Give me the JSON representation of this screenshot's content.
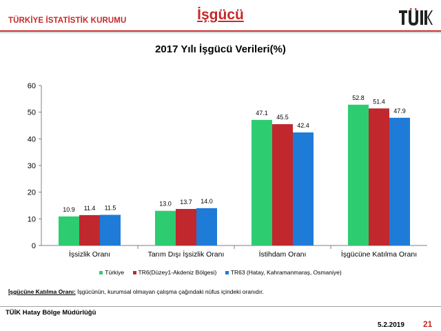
{
  "header": {
    "org_name": "TÜRKİYE İSTATİSTİK KURUMU",
    "section_title": "İşgücü",
    "logo_text": "TÜİK"
  },
  "colors": {
    "brand_red": "#c62828",
    "series": [
      "#2ecc71",
      "#c0282d",
      "#1e7bd8"
    ]
  },
  "chart_data": {
    "type": "bar",
    "title": "2017 Yılı İşgücü Verileri(%)",
    "categories": [
      "İşsizlik Oranı",
      "Tarım Dışı İşsizlik Oranı",
      "İstihdam Oranı",
      "İşgücüne Katılma Oranı"
    ],
    "series": [
      {
        "name": "Türkiye",
        "values": [
          10.9,
          13.0,
          47.1,
          52.8
        ]
      },
      {
        "name": "TR6(Düzey1-Akdeniz Bölgesi)",
        "values": [
          11.4,
          13.7,
          45.5,
          51.4
        ]
      },
      {
        "name": "TR63 (Hatay, Kahramanmaraş, Osmaniye)",
        "values": [
          11.5,
          14.0,
          42.4,
          47.9
        ]
      }
    ],
    "data_labels": [
      [
        "10.9",
        "13.0",
        "47.1",
        "52.8"
      ],
      [
        "11.4",
        "13.7",
        "45.5",
        "51.4"
      ],
      [
        "11.5",
        "14.0",
        "42.4",
        "47.9"
      ]
    ],
    "yticks": [
      "0",
      "10",
      "20",
      "30",
      "40",
      "50",
      "60"
    ],
    "ylim": [
      0,
      60
    ],
    "grid": false,
    "legend_position": "bottom"
  },
  "footnote": {
    "term": "İşgücüne Katılma Oranı:",
    "text": " İşgücünün, kurumsal olmayan çalışma çağındaki nüfus içindeki oranıdır."
  },
  "footer": {
    "office": "TÜİK Hatay Bölge Müdürlüğü",
    "date": "5.2.2019",
    "page_number": "21"
  }
}
